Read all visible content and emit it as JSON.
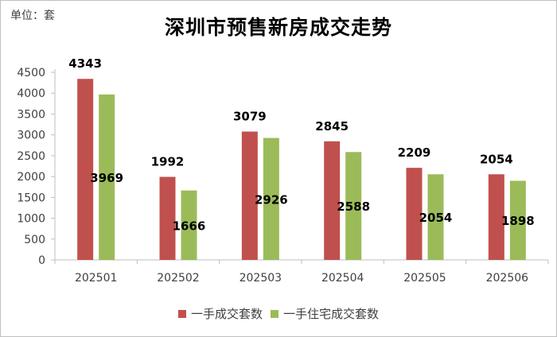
{
  "unit_label": "单位：套",
  "chart_data": {
    "type": "bar",
    "title": "深圳市预售新房成交走势",
    "categories": [
      "202501",
      "202502",
      "202503",
      "202504",
      "202505",
      "202506"
    ],
    "series": [
      {
        "name": "一手成交套数",
        "color": "#c0504d",
        "values": [
          4343,
          1992,
          3079,
          2845,
          2209,
          2054
        ]
      },
      {
        "name": "一手住宅成交套数",
        "color": "#9bbb59",
        "values": [
          3969,
          1666,
          2926,
          2588,
          2054,
          1898
        ]
      }
    ],
    "ylim": [
      0,
      4500
    ],
    "y_ticks": [
      0,
      500,
      1000,
      1500,
      2000,
      2500,
      3000,
      3500,
      4000,
      4500
    ],
    "grid": false,
    "legend_position": "bottom",
    "data_labels": {
      "series_1": "above-bar",
      "series_2": "inside-bar-mid"
    }
  }
}
